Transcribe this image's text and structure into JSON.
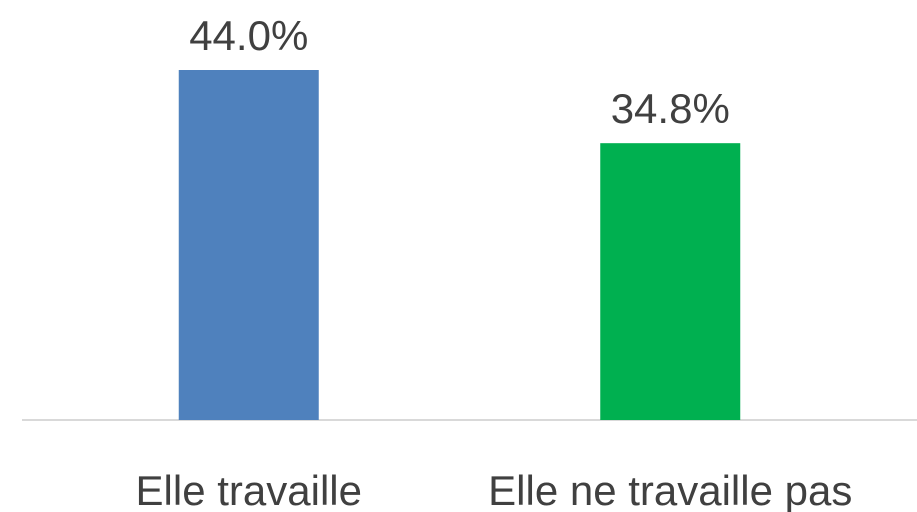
{
  "chart_data": {
    "type": "bar",
    "categories": [
      "Elle travaille",
      "Elle ne travaille pas"
    ],
    "values": [
      44.0,
      34.8
    ],
    "value_labels": [
      "44.0%",
      "34.8%"
    ],
    "colors": [
      "#4f81bd",
      "#00b050"
    ]
  }
}
